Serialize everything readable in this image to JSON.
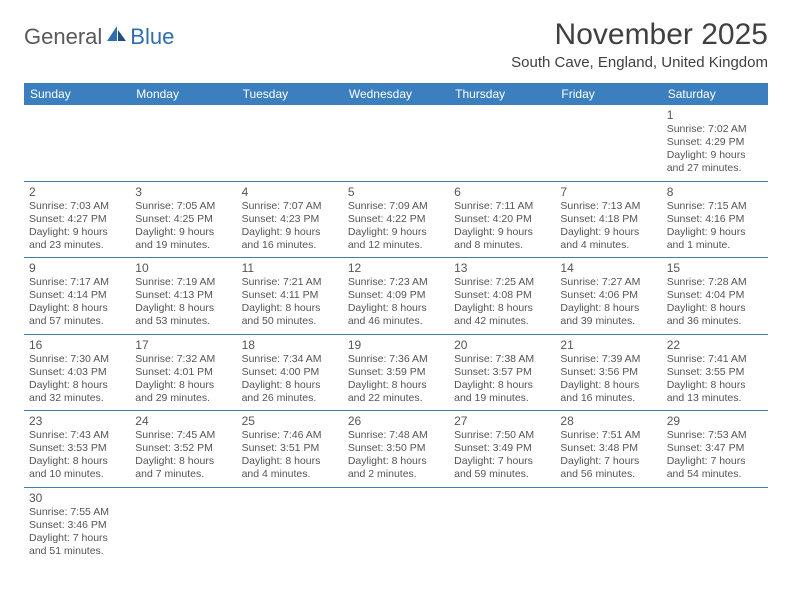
{
  "logo": {
    "text1": "General",
    "text2": "Blue"
  },
  "header": {
    "month_title": "November 2025",
    "location": "South Cave, England, United Kingdom"
  },
  "colors": {
    "header_bg": "#3b7fbf",
    "header_text": "#ffffff",
    "border": "#3b7fbf",
    "text": "#555555",
    "logo_gray": "#5a5a5a",
    "logo_blue": "#2f6fb0"
  },
  "dow": [
    "Sunday",
    "Monday",
    "Tuesday",
    "Wednesday",
    "Thursday",
    "Friday",
    "Saturday"
  ],
  "weeks": [
    [
      null,
      null,
      null,
      null,
      null,
      null,
      {
        "n": "1",
        "sr": "7:02 AM",
        "ss": "4:29 PM",
        "dl": "9 hours and 27 minutes."
      }
    ],
    [
      {
        "n": "2",
        "sr": "7:03 AM",
        "ss": "4:27 PM",
        "dl": "9 hours and 23 minutes."
      },
      {
        "n": "3",
        "sr": "7:05 AM",
        "ss": "4:25 PM",
        "dl": "9 hours and 19 minutes."
      },
      {
        "n": "4",
        "sr": "7:07 AM",
        "ss": "4:23 PM",
        "dl": "9 hours and 16 minutes."
      },
      {
        "n": "5",
        "sr": "7:09 AM",
        "ss": "4:22 PM",
        "dl": "9 hours and 12 minutes."
      },
      {
        "n": "6",
        "sr": "7:11 AM",
        "ss": "4:20 PM",
        "dl": "9 hours and 8 minutes."
      },
      {
        "n": "7",
        "sr": "7:13 AM",
        "ss": "4:18 PM",
        "dl": "9 hours and 4 minutes."
      },
      {
        "n": "8",
        "sr": "7:15 AM",
        "ss": "4:16 PM",
        "dl": "9 hours and 1 minute."
      }
    ],
    [
      {
        "n": "9",
        "sr": "7:17 AM",
        "ss": "4:14 PM",
        "dl": "8 hours and 57 minutes."
      },
      {
        "n": "10",
        "sr": "7:19 AM",
        "ss": "4:13 PM",
        "dl": "8 hours and 53 minutes."
      },
      {
        "n": "11",
        "sr": "7:21 AM",
        "ss": "4:11 PM",
        "dl": "8 hours and 50 minutes."
      },
      {
        "n": "12",
        "sr": "7:23 AM",
        "ss": "4:09 PM",
        "dl": "8 hours and 46 minutes."
      },
      {
        "n": "13",
        "sr": "7:25 AM",
        "ss": "4:08 PM",
        "dl": "8 hours and 42 minutes."
      },
      {
        "n": "14",
        "sr": "7:27 AM",
        "ss": "4:06 PM",
        "dl": "8 hours and 39 minutes."
      },
      {
        "n": "15",
        "sr": "7:28 AM",
        "ss": "4:04 PM",
        "dl": "8 hours and 36 minutes."
      }
    ],
    [
      {
        "n": "16",
        "sr": "7:30 AM",
        "ss": "4:03 PM",
        "dl": "8 hours and 32 minutes."
      },
      {
        "n": "17",
        "sr": "7:32 AM",
        "ss": "4:01 PM",
        "dl": "8 hours and 29 minutes."
      },
      {
        "n": "18",
        "sr": "7:34 AM",
        "ss": "4:00 PM",
        "dl": "8 hours and 26 minutes."
      },
      {
        "n": "19",
        "sr": "7:36 AM",
        "ss": "3:59 PM",
        "dl": "8 hours and 22 minutes."
      },
      {
        "n": "20",
        "sr": "7:38 AM",
        "ss": "3:57 PM",
        "dl": "8 hours and 19 minutes."
      },
      {
        "n": "21",
        "sr": "7:39 AM",
        "ss": "3:56 PM",
        "dl": "8 hours and 16 minutes."
      },
      {
        "n": "22",
        "sr": "7:41 AM",
        "ss": "3:55 PM",
        "dl": "8 hours and 13 minutes."
      }
    ],
    [
      {
        "n": "23",
        "sr": "7:43 AM",
        "ss": "3:53 PM",
        "dl": "8 hours and 10 minutes."
      },
      {
        "n": "24",
        "sr": "7:45 AM",
        "ss": "3:52 PM",
        "dl": "8 hours and 7 minutes."
      },
      {
        "n": "25",
        "sr": "7:46 AM",
        "ss": "3:51 PM",
        "dl": "8 hours and 4 minutes."
      },
      {
        "n": "26",
        "sr": "7:48 AM",
        "ss": "3:50 PM",
        "dl": "8 hours and 2 minutes."
      },
      {
        "n": "27",
        "sr": "7:50 AM",
        "ss": "3:49 PM",
        "dl": "7 hours and 59 minutes."
      },
      {
        "n": "28",
        "sr": "7:51 AM",
        "ss": "3:48 PM",
        "dl": "7 hours and 56 minutes."
      },
      {
        "n": "29",
        "sr": "7:53 AM",
        "ss": "3:47 PM",
        "dl": "7 hours and 54 minutes."
      }
    ],
    [
      {
        "n": "30",
        "sr": "7:55 AM",
        "ss": "3:46 PM",
        "dl": "7 hours and 51 minutes."
      },
      null,
      null,
      null,
      null,
      null,
      null
    ]
  ],
  "labels": {
    "sunrise": "Sunrise:",
    "sunset": "Sunset:",
    "daylight": "Daylight:"
  }
}
